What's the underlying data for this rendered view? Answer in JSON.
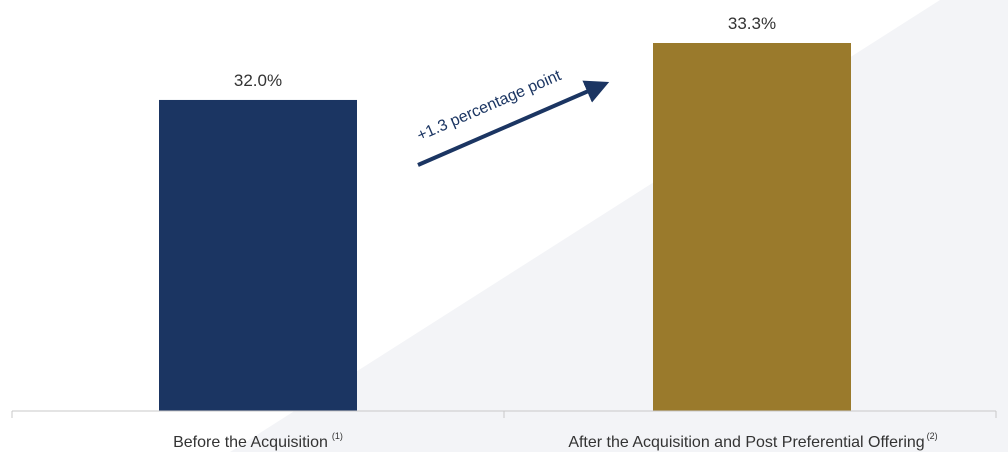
{
  "chart_data": {
    "type": "bar",
    "categories": [
      "Before the Acquisition",
      "After the Acquisition and Post Preferential Offering"
    ],
    "category_footnotes": [
      "(1)",
      "(2)"
    ],
    "values": [
      32.0,
      33.3
    ],
    "data_labels": [
      "32.0%",
      "33.3%"
    ],
    "unit": "%",
    "bar_colors": [
      "#1b3562",
      "#9a7a2c"
    ],
    "annotation": {
      "text": "+1.3 percentage point",
      "color": "#1b3562"
    },
    "title": "",
    "xlabel": "",
    "ylabel": "",
    "ylim": [
      24.9,
      33.3
    ],
    "grid": false,
    "legend": "none"
  },
  "colors": {
    "background_band": "#f3f4f7",
    "axis": "#c8c8c8",
    "label_text": "#333333"
  }
}
